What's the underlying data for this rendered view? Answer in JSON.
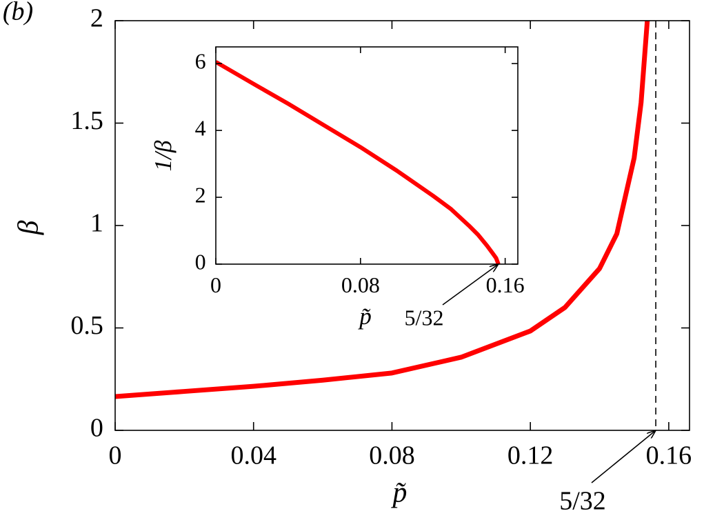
{
  "chart_data": [
    {
      "type": "line",
      "panel_label": "(b)",
      "xlabel": "p̃",
      "ylabel": "β",
      "x": [
        0,
        0.02,
        0.04,
        0.06,
        0.08,
        0.1,
        0.12,
        0.13,
        0.14,
        0.145,
        0.15,
        0.152,
        0.1538
      ],
      "values": [
        0.165,
        0.19,
        0.215,
        0.245,
        0.28,
        0.357,
        0.485,
        0.6,
        0.79,
        0.96,
        1.33,
        1.6,
        2.0
      ],
      "color": "#ff0000",
      "xlim": [
        0,
        0.166
      ],
      "ylim": [
        0,
        2
      ],
      "xticks": [
        0,
        0.04,
        0.08,
        0.12,
        0.16
      ],
      "yticks": [
        0,
        0.5,
        1,
        1.5,
        2
      ],
      "vline": {
        "x": 0.15625,
        "style": "dashed"
      },
      "annotation": {
        "text": "5/32",
        "x": 0.15625,
        "y": 0
      }
    },
    {
      "type": "line",
      "xlabel": "p̃",
      "ylabel": "1/β",
      "x": [
        0,
        0.02,
        0.04,
        0.06,
        0.08,
        0.1,
        0.12,
        0.13,
        0.14,
        0.145,
        0.15,
        0.153,
        0.155,
        0.15625
      ],
      "values": [
        6.05,
        5.42,
        4.8,
        4.15,
        3.5,
        2.8,
        2.05,
        1.65,
        1.15,
        0.88,
        0.55,
        0.33,
        0.18,
        0
      ],
      "color": "#ff0000",
      "xlim": [
        0,
        0.167
      ],
      "ylim": [
        0,
        6.5
      ],
      "xticks": [
        0,
        0.08,
        0.16
      ],
      "yticks": [
        0,
        2,
        4,
        6
      ],
      "annotation": {
        "text": "5/32",
        "x": 0.15625,
        "y": 0
      }
    }
  ]
}
